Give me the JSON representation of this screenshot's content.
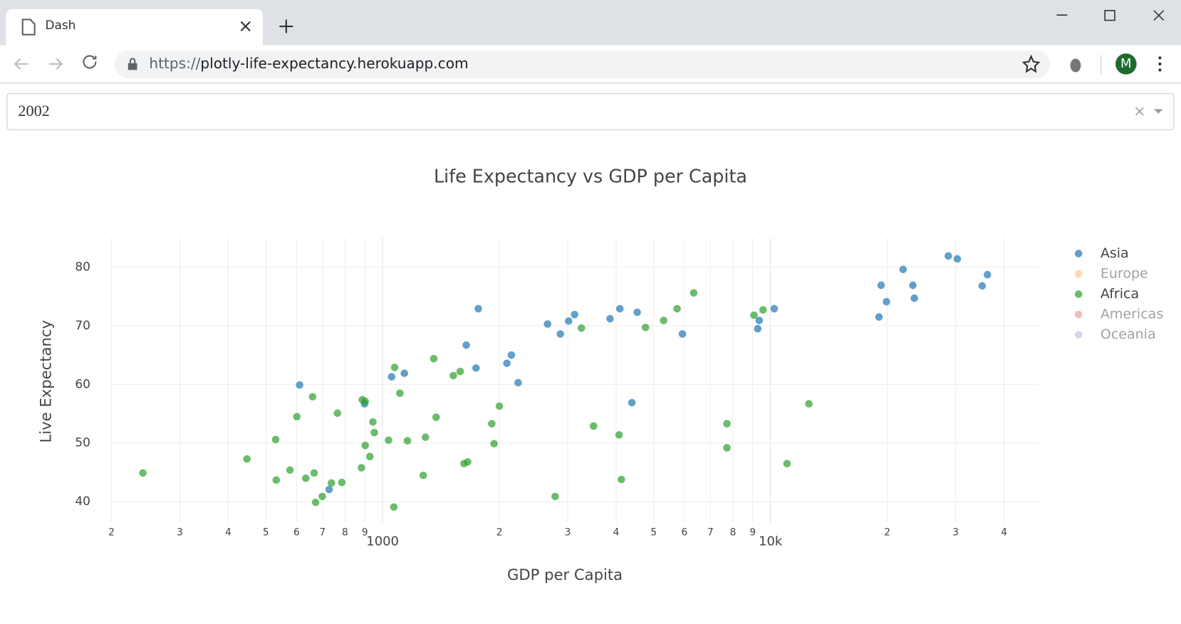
{
  "browser": {
    "tab_title": "Dash",
    "url_scheme": "https://",
    "url_host": "plotly-life-expectancy.herokuapp.com",
    "avatar": "M"
  },
  "dropdown": {
    "value": "2002"
  },
  "chart_data": {
    "type": "scatter",
    "title": "Life Expectancy vs GDP per Capita",
    "xlabel": "GDP per Capita",
    "ylabel": "Live Expectancy",
    "xlog": true,
    "grid": true,
    "legend": "right",
    "xlim": [
      200,
      48900
    ],
    "ylim": [
      36.4,
      85
    ],
    "xticks": [
      {
        "value": 200,
        "label": "2"
      },
      {
        "value": 300,
        "label": "3"
      },
      {
        "value": 400,
        "label": "4"
      },
      {
        "value": 500,
        "label": "5"
      },
      {
        "value": 600,
        "label": "6"
      },
      {
        "value": 700,
        "label": "7"
      },
      {
        "value": 800,
        "label": "8"
      },
      {
        "value": 900,
        "label": "9"
      },
      1000,
      {
        "value": 2000,
        "label": "2"
      },
      {
        "value": 3000,
        "label": "3"
      },
      {
        "value": 4000,
        "label": "4"
      },
      {
        "value": 5000,
        "label": "5"
      },
      {
        "value": 6000,
        "label": "6"
      },
      {
        "value": 7000,
        "label": "7"
      },
      {
        "value": 8000,
        "label": "8"
      },
      {
        "value": 9000,
        "label": "9"
      },
      {
        "value": 10000,
        "label": "10k"
      },
      {
        "value": 20000,
        "label": "2"
      },
      {
        "value": 30000,
        "label": "3"
      },
      {
        "value": 40000,
        "label": "4"
      }
    ],
    "yticks": [
      40,
      50,
      60,
      70,
      80
    ],
    "series": [
      {
        "name": "Asia",
        "color": "#1f77b4",
        "visible": true,
        "x": [
          611,
          898,
          728,
          1055,
          1138,
          1765,
          1643,
          1741,
          2091,
          2148,
          2236,
          2662,
          2872,
          3017,
          3126,
          3858,
          4089,
          4532,
          4392,
          5928,
          9269,
          9352,
          10224,
          19040,
          19290,
          19910,
          21970,
          23280,
          23490,
          28730,
          30310,
          35130,
          36250
        ],
        "values": [
          59.9,
          56.7,
          42.1,
          61.3,
          61.9,
          72.9,
          66.7,
          62.8,
          63.6,
          65.0,
          60.3,
          70.3,
          68.6,
          70.8,
          71.9,
          71.2,
          72.9,
          72.3,
          56.9,
          68.6,
          69.5,
          70.9,
          72.9,
          71.5,
          76.9,
          74.1,
          79.6,
          76.9,
          74.7,
          81.9,
          81.4,
          76.8,
          78.7
        ]
      },
      {
        "name": "Europe",
        "color": "#ff7f0e",
        "visible": false,
        "x": [],
        "values": []
      },
      {
        "name": "Africa",
        "color": "#2ca02c",
        "visible": true,
        "x": [
          241,
          447,
          530,
          532,
          577,
          601,
          634,
          660,
          666,
          672,
          699,
          738,
          765,
          785,
          882,
          886,
          902,
          902,
          927,
          944,
          952,
          1036,
          1069,
          1074,
          1108,
          1159,
          1273,
          1290,
          1355,
          1374,
          1522,
          1585,
          1621,
          1657,
          1912,
          1938,
          2000,
          2785,
          3255,
          3498,
          4071,
          4127,
          4762,
          5302,
          5744,
          6339,
          7720,
          7720,
          9065,
          9564,
          11030,
          12560
        ],
        "values": [
          44.9,
          47.3,
          50.6,
          43.7,
          45.4,
          54.5,
          44.0,
          57.9,
          44.9,
          39.9,
          40.9,
          43.2,
          55.1,
          43.3,
          45.8,
          57.4,
          57.1,
          49.6,
          47.7,
          53.6,
          51.8,
          50.5,
          39.1,
          62.9,
          58.5,
          50.4,
          44.5,
          51.0,
          64.4,
          54.4,
          61.5,
          62.2,
          46.5,
          46.8,
          53.3,
          49.9,
          56.3,
          40.9,
          69.6,
          52.9,
          51.4,
          43.8,
          69.7,
          70.9,
          72.9,
          75.6,
          53.3,
          49.2,
          71.8,
          72.7,
          46.5,
          56.7
        ]
      },
      {
        "name": "Americas",
        "color": "#d62728",
        "visible": false,
        "x": [],
        "values": []
      },
      {
        "name": "Oceania",
        "color": "#9467bd",
        "visible": false,
        "x": [],
        "values": []
      }
    ]
  }
}
